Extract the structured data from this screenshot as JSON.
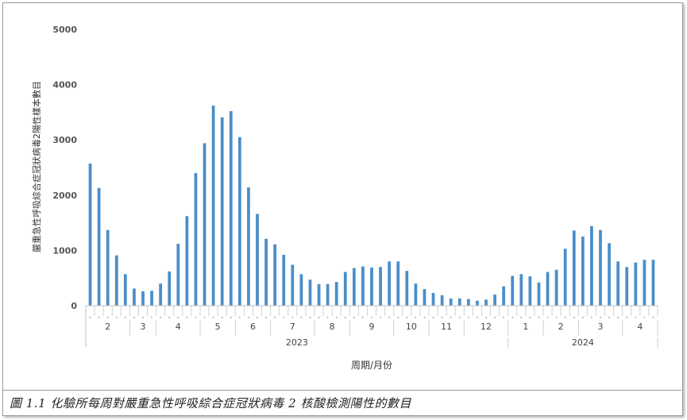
{
  "caption": "圖 1.1  化驗所每周對嚴重急性呼吸綜合症冠狀病毒 2 核酸檢測陽性的數目",
  "chart_data": {
    "type": "bar",
    "title": "",
    "xlabel": "周期/月份",
    "ylabel": "嚴重急性呼吸綜合症冠狀病毒2陽性樣本數目",
    "ylim": [
      0,
      5000
    ],
    "yticks": [
      0,
      1000,
      2000,
      3000,
      4000,
      5000
    ],
    "grid": false,
    "legend": "none",
    "bar_color": "#4a8ec9",
    "values": [
      2570,
      2130,
      1370,
      910,
      570,
      310,
      260,
      270,
      400,
      620,
      1120,
      1620,
      2400,
      2940,
      3620,
      3410,
      3520,
      3050,
      2140,
      1660,
      1210,
      1110,
      920,
      740,
      570,
      470,
      390,
      390,
      430,
      610,
      680,
      710,
      690,
      700,
      800,
      800,
      630,
      400,
      300,
      230,
      190,
      130,
      130,
      120,
      90,
      110,
      200,
      350,
      540,
      570,
      530,
      420,
      610,
      650,
      1030,
      1360,
      1250,
      1440,
      1370,
      1130,
      800,
      700,
      780,
      830,
      830
    ],
    "months": [
      {
        "label": "2",
        "count": 5
      },
      {
        "label": "3",
        "count": 3
      },
      {
        "label": "4",
        "count": 5
      },
      {
        "label": "5",
        "count": 4
      },
      {
        "label": "6",
        "count": 4
      },
      {
        "label": "7",
        "count": 5
      },
      {
        "label": "8",
        "count": 4
      },
      {
        "label": "9",
        "count": 5
      },
      {
        "label": "10",
        "count": 4
      },
      {
        "label": "11",
        "count": 4
      },
      {
        "label": "12",
        "count": 5
      },
      {
        "label": "1",
        "count": 4
      },
      {
        "label": "2",
        "count": 4
      },
      {
        "label": "3",
        "count": 5
      },
      {
        "label": "4",
        "count": 4
      }
    ],
    "years": [
      {
        "label": "2023",
        "months": 11
      },
      {
        "label": "2024",
        "months": 4
      }
    ]
  }
}
